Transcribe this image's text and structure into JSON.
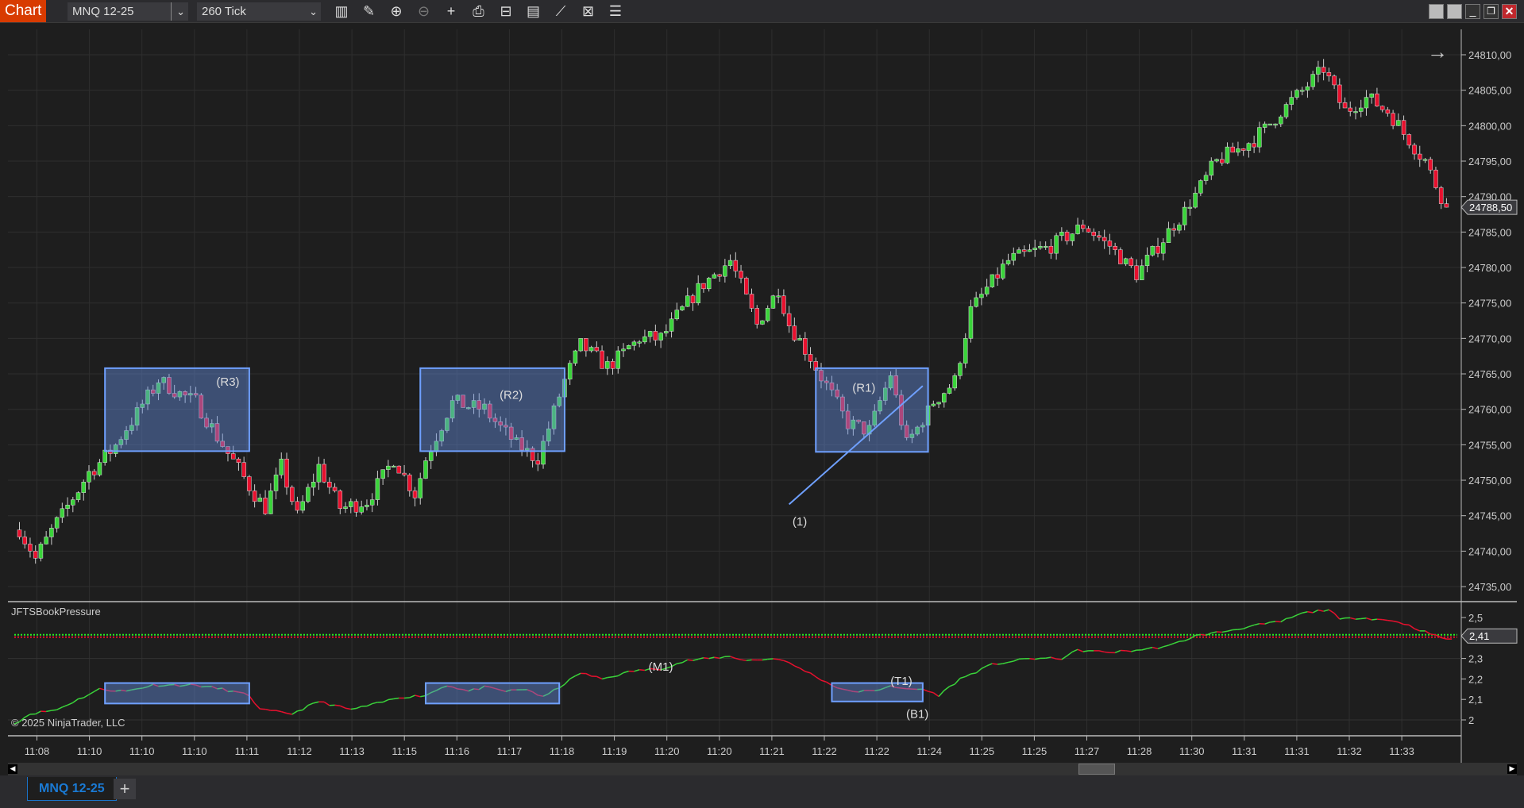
{
  "window": {
    "title": "Chart",
    "controls": [
      "minimize",
      "restore",
      "close"
    ]
  },
  "toolbar": {
    "instrument": "MNQ 12-25",
    "interval": "260 Tick",
    "icons": [
      "bar-chart-icon",
      "pencil-icon",
      "zoom-in-icon",
      "zoom-out-icon",
      "crosshair-icon",
      "data-box-icon",
      "chart-properties-icon",
      "indicators-icon",
      "strategies-icon",
      "templates-icon",
      "list-icon"
    ]
  },
  "colors": {
    "up": "#3ad43a",
    "down": "#e8102e",
    "drawing_rect": "#6fa0ff",
    "accent": "#d83b01",
    "tab_text": "#1a7ad4"
  },
  "price_panel": {
    "axis_labels": [
      "24810,00",
      "24805,00",
      "24800,00",
      "24795,00",
      "24790,00",
      "24785,00",
      "24780,00",
      "24775,00",
      "24770,00",
      "24765,00",
      "24760,00",
      "24755,00",
      "24750,00",
      "24745,00",
      "24740,00",
      "24735,00"
    ],
    "last_price": "24788,50",
    "scroll_arrow": "→",
    "price_path": [
      [
        0,
        24743
      ],
      [
        3,
        24739
      ],
      [
        7,
        24744
      ],
      [
        13,
        24751
      ],
      [
        18,
        24755
      ],
      [
        26,
        24764
      ],
      [
        33,
        24761
      ],
      [
        38,
        24755
      ],
      [
        44,
        24748
      ],
      [
        46,
        24746
      ],
      [
        49,
        24752
      ],
      [
        52,
        24745
      ],
      [
        56,
        24752
      ],
      [
        60,
        24746
      ],
      [
        65,
        24747
      ],
      [
        70,
        24753
      ],
      [
        74,
        24748
      ],
      [
        76,
        24753
      ],
      [
        81,
        24761
      ],
      [
        87,
        24760
      ],
      [
        93,
        24755
      ],
      [
        97,
        24753
      ],
      [
        102,
        24764
      ],
      [
        105,
        24769
      ],
      [
        110,
        24766
      ],
      [
        116,
        24770
      ],
      [
        120,
        24770
      ],
      [
        127,
        24777
      ],
      [
        133,
        24781
      ],
      [
        138,
        24772
      ],
      [
        142,
        24777
      ],
      [
        144,
        24772
      ],
      [
        149,
        24766
      ],
      [
        155,
        24758
      ],
      [
        159,
        24757
      ],
      [
        163,
        24765
      ],
      [
        166,
        24755
      ],
      [
        171,
        24761
      ],
      [
        175,
        24764
      ],
      [
        178,
        24774
      ],
      [
        185,
        24781
      ],
      [
        193,
        24783
      ],
      [
        199,
        24786
      ],
      [
        204,
        24783
      ],
      [
        209,
        24779
      ],
      [
        213,
        24783
      ],
      [
        218,
        24788
      ],
      [
        224,
        24795
      ],
      [
        231,
        24798
      ],
      [
        236,
        24802
      ],
      [
        240,
        24805
      ],
      [
        244,
        24808
      ],
      [
        248,
        24802
      ],
      [
        252,
        24804
      ],
      [
        256,
        24802
      ],
      [
        263,
        24795
      ],
      [
        267,
        24788.5
      ]
    ],
    "zones": [
      {
        "label": "(R3)",
        "bars": [
          16,
          43
        ],
        "prices": [
          24765.8,
          24754.1
        ],
        "label_at": [
          39,
          24763.3
        ]
      },
      {
        "label": "(R2)",
        "bars": [
          75,
          102
        ],
        "prices": [
          24765.8,
          24754.1
        ],
        "label_at": [
          92,
          24761.5
        ]
      },
      {
        "label": "(R1)",
        "bars": [
          149,
          170
        ],
        "prices": [
          24765.8,
          24754.0
        ],
        "label_at": [
          158,
          24762.5
        ]
      }
    ],
    "trendline": {
      "label": "(1)",
      "from": [
        144,
        24746.6
      ],
      "to": [
        169,
        24763.3
      ],
      "label_at": [
        146,
        24743.6
      ]
    }
  },
  "indicator_panel": {
    "name": "JFTSBookPressure",
    "axis_labels": [
      "2,5",
      "2,3",
      "2,2",
      "2,1",
      "2"
    ],
    "axis_values": [
      2.5,
      2.3,
      2.2,
      2.1,
      2.0
    ],
    "current_value": "2,41",
    "level": 2.41,
    "copyright": "© 2025 NinjaTrader, LLC",
    "path": [
      [
        -1,
        1.98
      ],
      [
        2,
        2.03
      ],
      [
        7,
        2.05
      ],
      [
        15,
        2.15
      ],
      [
        20,
        2.14
      ],
      [
        25,
        2.17
      ],
      [
        33,
        2.17
      ],
      [
        38,
        2.15
      ],
      [
        43,
        2.12
      ],
      [
        45,
        2.05
      ],
      [
        51,
        2.03
      ],
      [
        56,
        2.09
      ],
      [
        62,
        2.05
      ],
      [
        67,
        2.08
      ],
      [
        71,
        2.11
      ],
      [
        76,
        2.12
      ],
      [
        80,
        2.17
      ],
      [
        84,
        2.14
      ],
      [
        87,
        2.16
      ],
      [
        91,
        2.14
      ],
      [
        95,
        2.15
      ],
      [
        98,
        2.11
      ],
      [
        101,
        2.16
      ],
      [
        105,
        2.23
      ],
      [
        109,
        2.2
      ],
      [
        115,
        2.24
      ],
      [
        120,
        2.25
      ],
      [
        125,
        2.29
      ],
      [
        133,
        2.31
      ],
      [
        136,
        2.29
      ],
      [
        142,
        2.3
      ],
      [
        147,
        2.24
      ],
      [
        152,
        2.17
      ],
      [
        155,
        2.14
      ],
      [
        160,
        2.14
      ],
      [
        163,
        2.17
      ],
      [
        165,
        2.15
      ],
      [
        169,
        2.15
      ],
      [
        172,
        2.12
      ],
      [
        176,
        2.2
      ],
      [
        182,
        2.27
      ],
      [
        189,
        2.3
      ],
      [
        195,
        2.3
      ],
      [
        198,
        2.34
      ],
      [
        204,
        2.33
      ],
      [
        209,
        2.34
      ],
      [
        215,
        2.36
      ],
      [
        220,
        2.41
      ],
      [
        225,
        2.43
      ],
      [
        231,
        2.46
      ],
      [
        236,
        2.48
      ],
      [
        240,
        2.52
      ],
      [
        245,
        2.54
      ],
      [
        247,
        2.49
      ],
      [
        251,
        2.5
      ],
      [
        258,
        2.48
      ],
      [
        262,
        2.44
      ],
      [
        265,
        2.41
      ],
      [
        268,
        2.39
      ]
    ],
    "zones": [
      {
        "bars": [
          16,
          43
        ],
        "values": [
          2.18,
          2.08
        ]
      },
      {
        "bars": [
          76,
          101
        ],
        "values": [
          2.18,
          2.08
        ]
      },
      {
        "bars": [
          152,
          169
        ],
        "values": [
          2.18,
          2.09
        ]
      }
    ],
    "annotations": [
      {
        "label": "(M1)",
        "at": [
          120,
          2.24
        ]
      },
      {
        "label": "(T1)",
        "at": [
          165,
          2.17
        ]
      },
      {
        "label": "(B1)",
        "at": [
          168,
          2.01
        ]
      }
    ]
  },
  "time_axis": [
    "11:08",
    "11:10",
    "11:10",
    "11:10",
    "11:11",
    "11:12",
    "11:13",
    "11:15",
    "11:16",
    "11:17",
    "11:18",
    "11:19",
    "11:20",
    "11:20",
    "11:21",
    "11:22",
    "11:22",
    "11:24",
    "11:25",
    "11:25",
    "11:27",
    "11:28",
    "11:30",
    "11:31",
    "11:31",
    "11:32",
    "11:33"
  ],
  "tabs": {
    "items": [
      {
        "label": "MNQ 12-25",
        "active": true
      }
    ],
    "add_label": "+"
  }
}
